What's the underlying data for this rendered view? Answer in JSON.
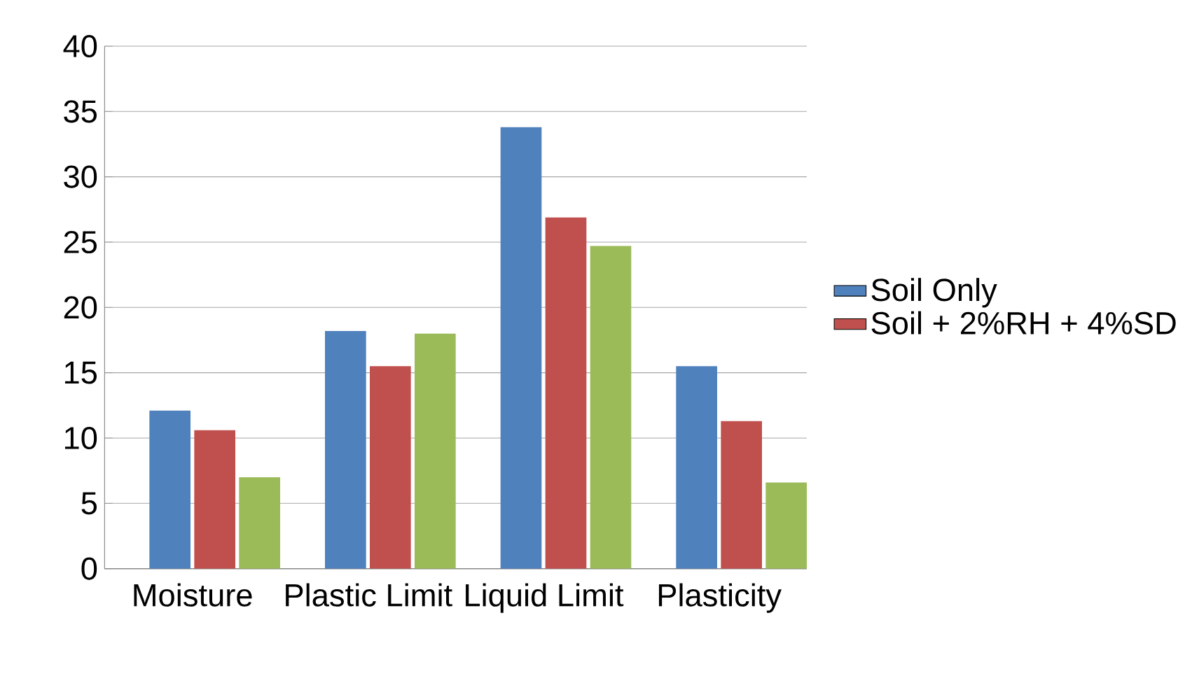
{
  "chart_data": {
    "type": "bar",
    "categories": [
      "Moisture",
      "Plastic Limit",
      "Liquid Limit",
      "Plasticity"
    ],
    "series": [
      {
        "name": "Soil Only",
        "color": "#4f81bd",
        "values": [
          12.1,
          18.2,
          33.8,
          15.5
        ]
      },
      {
        "name": "Soil + 2%RH + 4%SD",
        "color": "#c0504d",
        "values": [
          10.6,
          15.5,
          26.9,
          11.3
        ]
      },
      {
        "color": "#9bbb59",
        "values": [
          7.0,
          18.0,
          24.7,
          6.6
        ]
      }
    ],
    "ylim": [
      0,
      40
    ],
    "yticks": [
      0,
      5,
      10,
      15,
      20,
      25,
      30,
      35,
      40
    ],
    "grid": "y",
    "legend": "right"
  }
}
